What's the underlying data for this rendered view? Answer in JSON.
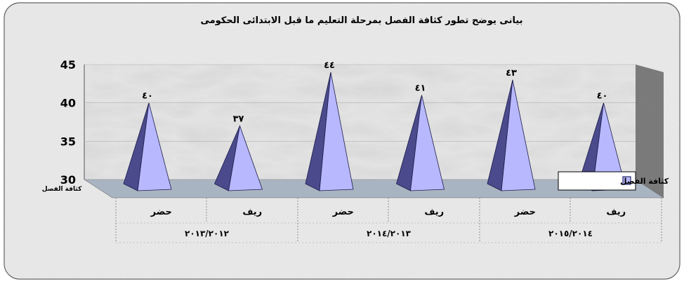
{
  "chart_data": {
    "type": "bar",
    "bar_shape": "pyramid",
    "title": "بيانى يوضح تطور كثافة الفصل بمرحلة التعليم ما قبل الابتدائى الحكومى",
    "ylabel": "كثافة الفصل",
    "xlabel": "",
    "ylim": [
      30,
      45
    ],
    "yticks": [
      "30",
      "35",
      "40",
      "45"
    ],
    "categories": [
      "حضر",
      "ريف",
      "حضر",
      "ريف",
      "حضر",
      "ريف"
    ],
    "groups": [
      "٢٠١٣/٢٠١٢",
      "٢٠١٤/٢٠١٣",
      "٢٠١٥/٢٠١٤"
    ],
    "series": [
      {
        "name": "كثافة الفصل",
        "values": [
          40,
          37,
          44,
          41,
          43,
          40
        ],
        "labels": [
          "٤٠",
          "٣٧",
          "٤٤",
          "٤١",
          "٤٣",
          "٤٠"
        ]
      }
    ],
    "grid": true,
    "legend": "right",
    "colors": {
      "face_light": "#b8b8ff",
      "face_dark": "#4a4a8c",
      "floor": "#a9b4c2",
      "back_wall": "#e4e4e4",
      "side_wall": "#7a7a7a"
    }
  }
}
